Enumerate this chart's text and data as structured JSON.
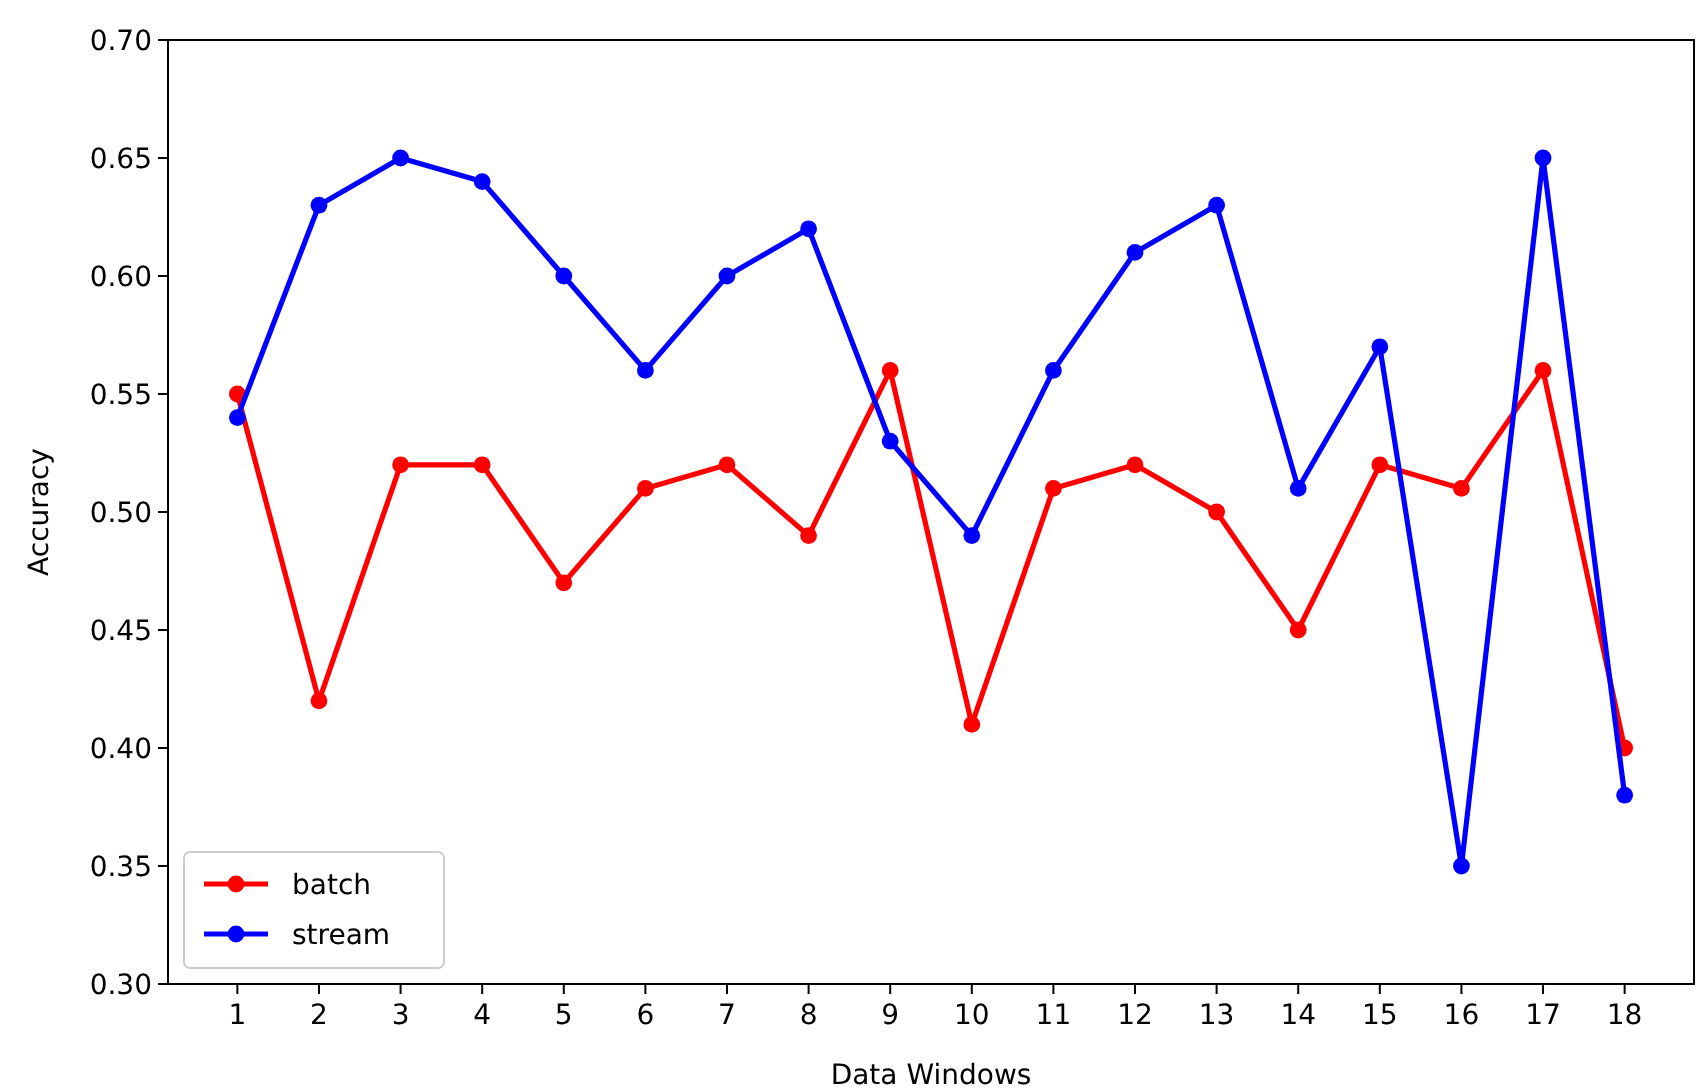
{
  "chart_data": {
    "type": "line",
    "xlabel": "Data Windows",
    "ylabel": "Accuracy",
    "x": [
      1,
      2,
      3,
      4,
      5,
      6,
      7,
      8,
      9,
      10,
      11,
      12,
      13,
      14,
      15,
      16,
      17,
      18
    ],
    "xlim": [
      0.15,
      18.85
    ],
    "xticks": [
      1,
      2,
      3,
      4,
      5,
      6,
      7,
      8,
      9,
      10,
      11,
      12,
      13,
      14,
      15,
      16,
      17,
      18
    ],
    "ylim": [
      0.3,
      0.7
    ],
    "yticks": [
      {
        "value": 0.3,
        "label": "0.30"
      },
      {
        "value": 0.35,
        "label": "0.35"
      },
      {
        "value": 0.4,
        "label": "0.40"
      },
      {
        "value": 0.45,
        "label": "0.45"
      },
      {
        "value": 0.5,
        "label": "0.50"
      },
      {
        "value": 0.55,
        "label": "0.55"
      },
      {
        "value": 0.6,
        "label": "0.60"
      },
      {
        "value": 0.65,
        "label": "0.65"
      },
      {
        "value": 0.7,
        "label": "0.70"
      }
    ],
    "legend": "bottom left",
    "marker": "circle",
    "line_style": "solid",
    "series": [
      {
        "name": "batch",
        "color": "#ff0000",
        "values": [
          0.55,
          0.42,
          0.52,
          0.52,
          0.47,
          0.51,
          0.52,
          0.49,
          0.56,
          0.41,
          0.51,
          0.52,
          0.5,
          0.45,
          0.52,
          0.51,
          0.56,
          0.4
        ]
      },
      {
        "name": "stream",
        "color": "#0000ff",
        "values": [
          0.54,
          0.63,
          0.65,
          0.64,
          0.6,
          0.56,
          0.6,
          0.62,
          0.53,
          0.49,
          0.56,
          0.61,
          0.63,
          0.51,
          0.57,
          0.35,
          0.65,
          0.38
        ]
      }
    ]
  }
}
